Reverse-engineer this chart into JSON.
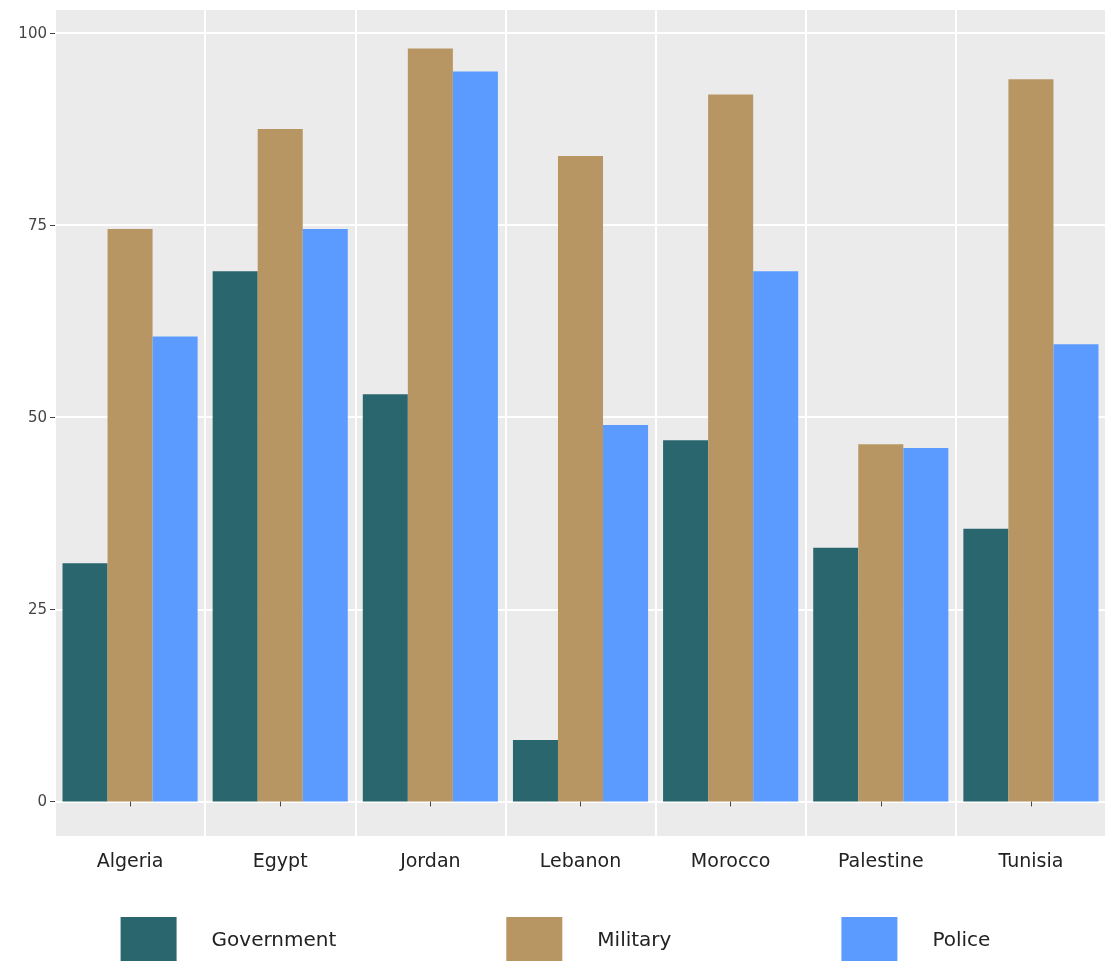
{
  "chart_data": {
    "type": "bar",
    "categories": [
      "Algeria",
      "Egypt",
      "Jordan",
      "Lebanon",
      "Morocco",
      "Palestine",
      "Tunisia"
    ],
    "series": [
      {
        "name": "Government",
        "color": "#29666e",
        "values": [
          31,
          69,
          53,
          8,
          47,
          33,
          35.5
        ]
      },
      {
        "name": "Military",
        "color": "#b89664",
        "values": [
          74.5,
          87.5,
          98,
          84,
          92,
          46.5,
          94
        ]
      },
      {
        "name": "Police",
        "color": "#5b9bff",
        "values": [
          60.5,
          74.5,
          95,
          49,
          69,
          46,
          59.5
        ]
      }
    ],
    "ylim": [
      -4.5,
      103
    ],
    "yticks": [
      0,
      25,
      50,
      75,
      100
    ],
    "grid": true,
    "legend": "bottom"
  }
}
